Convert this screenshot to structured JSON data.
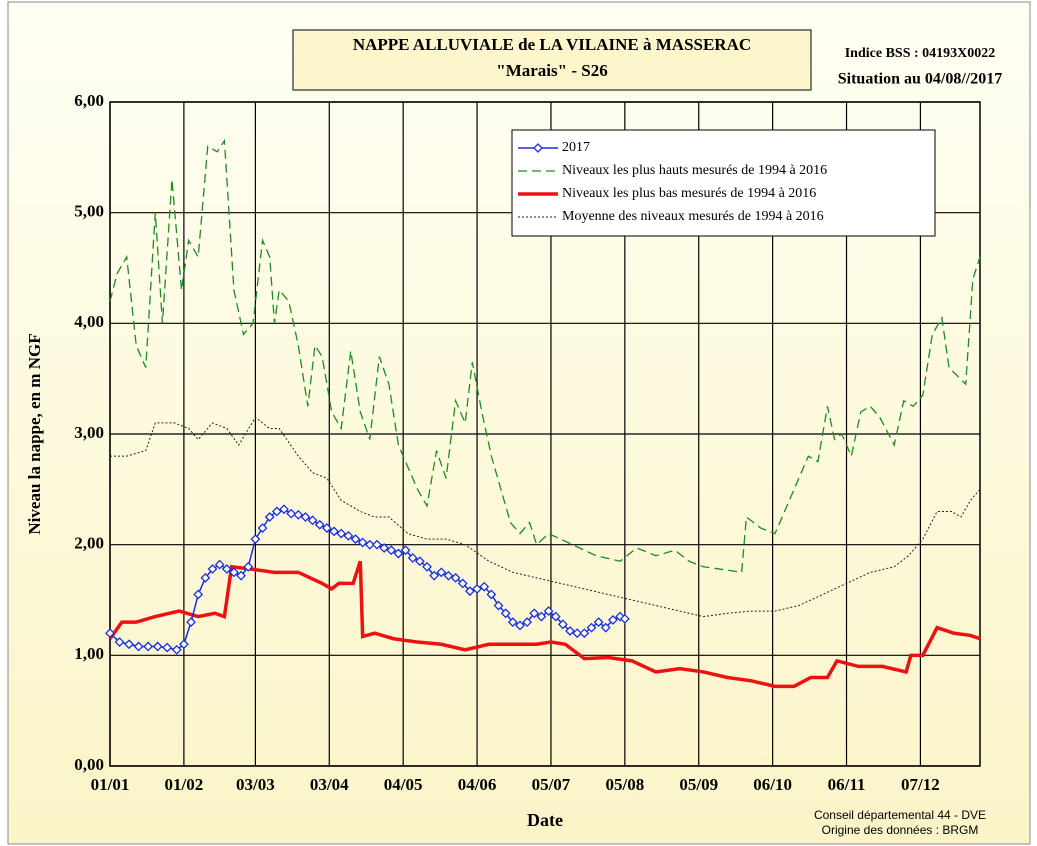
{
  "chart_data": {
    "type": "line",
    "title": "NAPPE ALLUVIALE  de LA VILAINE à MASSERAC",
    "subtitle": "\"Marais\" - S26",
    "annotations": [
      "Indice  BSS : 04193X0022",
      "Situation au 04/08//2017",
      "Conseil départemental 44 - DVE",
      "Origine des données : BRGM"
    ],
    "xlabel": "Date",
    "ylabel": "Niveau la nappe, en m NGF",
    "xlim": [
      1,
      366
    ],
    "xticks": [
      {
        "value": 1,
        "label": "01/01"
      },
      {
        "value": 32,
        "label": "01/02"
      },
      {
        "value": 62,
        "label": "03/03"
      },
      {
        "value": 93,
        "label": "03/04"
      },
      {
        "value": 124,
        "label": "04/05"
      },
      {
        "value": 155,
        "label": "04/06"
      },
      {
        "value": 186,
        "label": "05/07"
      },
      {
        "value": 217,
        "label": "05/08"
      },
      {
        "value": 248,
        "label": "05/09"
      },
      {
        "value": 279,
        "label": "06/10"
      },
      {
        "value": 310,
        "label": "06/11"
      },
      {
        "value": 341,
        "label": "07/12"
      }
    ],
    "ylim": [
      0,
      6
    ],
    "yticks": [
      {
        "value": 0,
        "label": "0,00"
      },
      {
        "value": 1,
        "label": "1,00"
      },
      {
        "value": 2,
        "label": "2,00"
      },
      {
        "value": 3,
        "label": "3,00"
      },
      {
        "value": 4,
        "label": "4,00"
      },
      {
        "value": 5,
        "label": "5,00"
      },
      {
        "value": 6,
        "label": "6,00"
      }
    ],
    "grid": true,
    "legend": "upper right",
    "series": [
      {
        "name": "2017",
        "color": "#1a2ee0",
        "style": "solid",
        "marker": "diamond",
        "x": [
          1,
          5,
          9,
          13,
          17,
          21,
          25,
          29,
          32,
          35,
          38,
          41,
          44,
          47,
          50,
          53,
          56,
          59,
          62,
          65,
          68,
          71,
          74,
          77,
          80,
          83,
          86,
          89,
          92,
          95,
          98,
          101,
          104,
          107,
          110,
          113,
          116,
          119,
          122,
          125,
          128,
          131,
          134,
          137,
          140,
          143,
          146,
          149,
          152,
          155,
          158,
          161,
          164,
          167,
          170,
          173,
          176,
          179,
          182,
          185,
          188,
          191,
          194,
          197,
          200,
          203,
          206,
          209,
          212,
          215,
          217
        ],
        "values": [
          1.2,
          1.12,
          1.1,
          1.08,
          1.08,
          1.08,
          1.07,
          1.05,
          1.1,
          1.3,
          1.55,
          1.7,
          1.78,
          1.82,
          1.78,
          1.75,
          1.72,
          1.8,
          2.05,
          2.15,
          2.25,
          2.3,
          2.32,
          2.28,
          2.27,
          2.25,
          2.22,
          2.18,
          2.15,
          2.12,
          2.1,
          2.08,
          2.05,
          2.02,
          2.0,
          2.0,
          1.97,
          1.95,
          1.92,
          1.95,
          1.88,
          1.85,
          1.8,
          1.72,
          1.75,
          1.72,
          1.7,
          1.65,
          1.58,
          1.6,
          1.62,
          1.55,
          1.45,
          1.38,
          1.3,
          1.27,
          1.3,
          1.38,
          1.35,
          1.4,
          1.35,
          1.28,
          1.22,
          1.2,
          1.2,
          1.25,
          1.3,
          1.25,
          1.32,
          1.35,
          1.33
        ]
      },
      {
        "name": "Niveaux les plus hauts mesurés de 1994 à 2016",
        "color": "#1e8c1e",
        "style": "dashed",
        "x": [
          1,
          4,
          8,
          12,
          16,
          20,
          23,
          27,
          31,
          34,
          38,
          42,
          46,
          49,
          53,
          57,
          61,
          65,
          68,
          70,
          72,
          76,
          80,
          84,
          87,
          90,
          94,
          98,
          102,
          106,
          110,
          114,
          118,
          122,
          126,
          130,
          134,
          138,
          142,
          146,
          150,
          153,
          157,
          161,
          165,
          169,
          173,
          177,
          180,
          185,
          195,
          205,
          215,
          222,
          230,
          238,
          244,
          250,
          260,
          266,
          268,
          274,
          280,
          284,
          290,
          294,
          298,
          302,
          305,
          308,
          312,
          316,
          320,
          324,
          330,
          334,
          338,
          342,
          346,
          350,
          353,
          360,
          363,
          366
        ],
        "values": [
          4.2,
          4.45,
          4.6,
          3.8,
          3.6,
          5.0,
          4.0,
          5.3,
          4.3,
          4.75,
          4.6,
          5.6,
          5.55,
          5.65,
          4.3,
          3.9,
          4.0,
          4.75,
          4.6,
          4.0,
          4.3,
          4.2,
          3.8,
          3.25,
          3.8,
          3.7,
          3.2,
          3.05,
          3.75,
          3.2,
          2.95,
          3.7,
          3.45,
          2.9,
          2.7,
          2.5,
          2.35,
          2.85,
          2.6,
          3.3,
          3.1,
          3.65,
          3.2,
          2.8,
          2.5,
          2.2,
          2.1,
          2.2,
          2.0,
          2.1,
          2.0,
          1.9,
          1.85,
          1.97,
          1.9,
          1.95,
          1.85,
          1.8,
          1.77,
          1.75,
          2.25,
          2.15,
          2.1,
          2.3,
          2.6,
          2.8,
          2.75,
          3.25,
          2.95,
          3.0,
          2.8,
          3.2,
          3.25,
          3.15,
          2.9,
          3.3,
          3.25,
          3.35,
          3.9,
          4.05,
          3.6,
          3.45,
          4.4,
          4.6
        ]
      },
      {
        "name": "Niveaux les plus bas mesurés de 1994 à 2016",
        "color": "#ee1111",
        "style": "solid",
        "x": [
          1,
          6,
          12,
          20,
          30,
          38,
          45,
          49,
          52,
          60,
          70,
          80,
          90,
          94,
          97,
          103,
          106,
          107,
          112,
          120,
          130,
          140,
          150,
          160,
          170,
          180,
          186,
          192,
          200,
          210,
          220,
          230,
          240,
          250,
          260,
          270,
          280,
          288,
          295,
          302,
          306,
          315,
          325,
          335,
          337,
          342,
          348,
          355,
          362,
          366
        ],
        "values": [
          1.15,
          1.3,
          1.3,
          1.35,
          1.4,
          1.35,
          1.38,
          1.35,
          1.8,
          1.78,
          1.75,
          1.75,
          1.65,
          1.6,
          1.65,
          1.65,
          1.85,
          1.17,
          1.2,
          1.15,
          1.12,
          1.1,
          1.05,
          1.1,
          1.1,
          1.1,
          1.12,
          1.1,
          0.97,
          0.98,
          0.95,
          0.85,
          0.88,
          0.85,
          0.8,
          0.77,
          0.72,
          0.72,
          0.8,
          0.8,
          0.95,
          0.9,
          0.9,
          0.85,
          1.0,
          1.0,
          1.25,
          1.2,
          1.18,
          1.15
        ]
      },
      {
        "name": "Moyenne des niveaux mesurés de 1994 à 2016",
        "color": "#222222",
        "style": "dotted",
        "x": [
          1,
          8,
          16,
          20,
          28,
          34,
          38,
          44,
          50,
          55,
          62,
          68,
          72,
          80,
          86,
          92,
          98,
          106,
          112,
          118,
          126,
          134,
          142,
          150,
          160,
          170,
          180,
          190,
          200,
          210,
          220,
          230,
          240,
          250,
          260,
          270,
          280,
          290,
          300,
          310,
          320,
          330,
          336,
          342,
          348,
          354,
          358,
          362,
          366
        ],
        "values": [
          2.8,
          2.8,
          2.85,
          3.1,
          3.1,
          3.05,
          2.95,
          3.1,
          3.05,
          2.9,
          3.15,
          3.05,
          3.05,
          2.8,
          2.65,
          2.6,
          2.4,
          2.3,
          2.25,
          2.25,
          2.1,
          2.05,
          2.05,
          2.0,
          1.85,
          1.75,
          1.7,
          1.65,
          1.6,
          1.55,
          1.5,
          1.45,
          1.4,
          1.35,
          1.38,
          1.4,
          1.4,
          1.45,
          1.55,
          1.65,
          1.75,
          1.8,
          1.9,
          2.05,
          2.3,
          2.3,
          2.25,
          2.4,
          2.5
        ]
      }
    ]
  }
}
